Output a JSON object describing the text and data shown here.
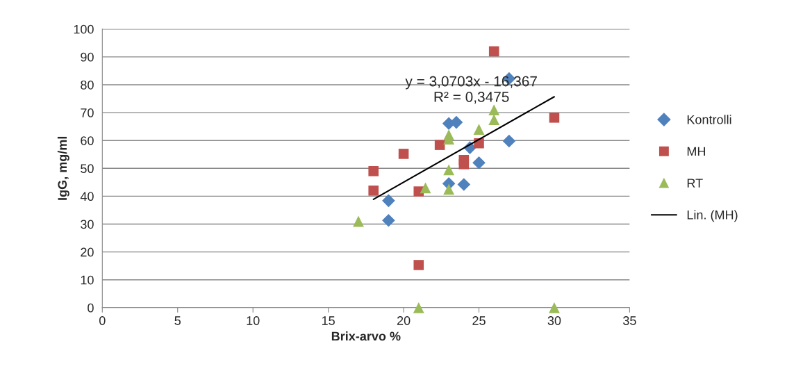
{
  "chart_data": {
    "type": "scatter",
    "xlabel": "Brix-arvo %",
    "ylabel": "IgG, mg/ml",
    "xlim": [
      0,
      35
    ],
    "xticks": [
      0,
      5,
      10,
      15,
      20,
      25,
      30,
      35
    ],
    "ylim": [
      0,
      100
    ],
    "yticks": [
      0,
      10,
      20,
      30,
      40,
      50,
      60,
      70,
      80,
      90,
      100
    ],
    "grid": "y",
    "legend": "right",
    "annotations": [
      "y = 3,0703x - 16,367\nR² = 0,3475"
    ],
    "series": [
      {
        "name": "Kontrolli",
        "color": "#4f81bd",
        "marker": "diamond",
        "x": [
          19,
          19,
          23,
          23.5,
          24.4,
          23,
          24,
          25,
          27,
          27
        ],
        "values": [
          38.4,
          31.3,
          66.1,
          66.5,
          57.4,
          44.5,
          44.2,
          52,
          59.8,
          82.2
        ]
      },
      {
        "name": "MH",
        "color": "#c0504d",
        "marker": "square",
        "x": [
          18,
          18,
          20,
          21,
          21,
          22.4,
          24,
          24,
          25,
          26,
          30
        ],
        "values": [
          49,
          42,
          55.2,
          41.7,
          15.3,
          58.4,
          53,
          51.5,
          59,
          92,
          68.2
        ]
      },
      {
        "name": "RT",
        "color": "#9bbb59",
        "marker": "triangle",
        "x": [
          17,
          21,
          21.45,
          23,
          23,
          23,
          23,
          25,
          26,
          26,
          30
        ],
        "values": [
          31,
          0,
          43,
          62,
          60.5,
          49.5,
          42.5,
          64,
          71,
          67.5,
          0
        ]
      },
      {
        "name": "Lin. (MH)",
        "type": "line",
        "color": "#000000",
        "marker": "none",
        "x": [
          18,
          30
        ],
        "values": [
          38.9,
          75.7
        ]
      }
    ]
  }
}
